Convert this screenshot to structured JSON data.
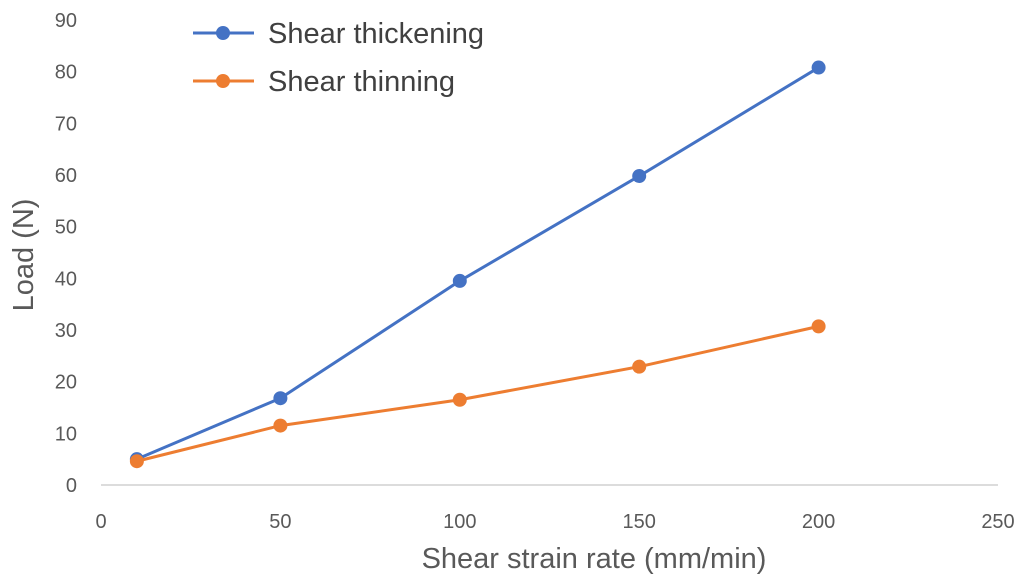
{
  "chart_data": {
    "type": "line",
    "title": "",
    "xlabel": "Shear strain rate (mm/min)",
    "ylabel": "Load (N)",
    "xlim": [
      0,
      250
    ],
    "ylim": [
      0,
      90
    ],
    "xticks": [
      0,
      50,
      100,
      150,
      200,
      250
    ],
    "yticks": [
      0,
      10,
      20,
      30,
      40,
      50,
      60,
      70,
      80,
      90
    ],
    "grid": false,
    "legend_position": "top-left",
    "series": [
      {
        "name": "Shear thickening",
        "color": "#4472C4",
        "x": [
          10,
          50,
          100,
          150,
          200
        ],
        "y": [
          5,
          16.8,
          39.5,
          59.8,
          80.8
        ]
      },
      {
        "name": "Shear thinning",
        "color": "#ED7D31",
        "x": [
          10,
          50,
          100,
          150,
          200
        ],
        "y": [
          4.6,
          11.5,
          16.5,
          22.9,
          30.7
        ]
      }
    ]
  }
}
